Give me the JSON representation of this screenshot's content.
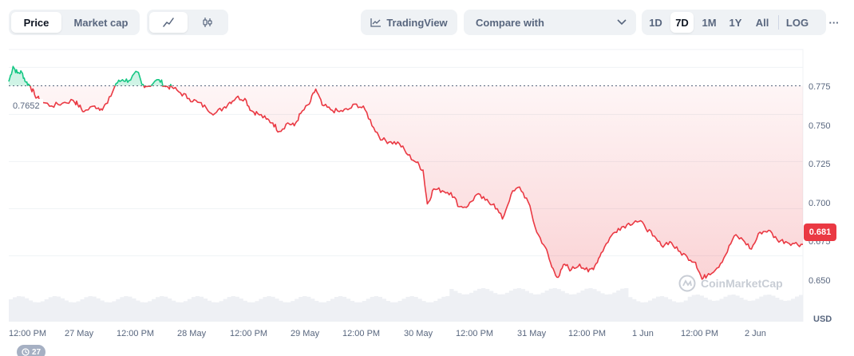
{
  "view_tabs": {
    "price": "Price",
    "market_cap": "Market cap"
  },
  "chart_type_buttons": [
    {
      "icon": "line-chart-icon"
    },
    {
      "icon": "candlestick-icon"
    }
  ],
  "tradingview_label": "TradingView",
  "compare": {
    "label": "Compare with"
  },
  "ranges": [
    "1D",
    "7D",
    "1M",
    "1Y",
    "All"
  ],
  "selected_range": "7D",
  "log_label": "LOG",
  "more_label": "···",
  "reference_price": "0.7652",
  "current_price": "0.681",
  "currency": "USD",
  "watermark": "CoinMarketCap",
  "history_count": "27",
  "colors": {
    "up": "#16c784",
    "down": "#ea3943",
    "accent": "#3861fb"
  },
  "chart_data": {
    "type": "line",
    "title": "",
    "xlabel": "",
    "ylabel": "USD",
    "ylim": [
      0.64,
      0.7845
    ],
    "y_ticks": [
      "0.775",
      "0.750",
      "0.725",
      "0.700",
      "0.675",
      "0.650"
    ],
    "x_ticks": [
      "12:00 PM",
      "27 May",
      "12:00 PM",
      "28 May",
      "12:00 PM",
      "29 May",
      "12:00 PM",
      "30 May",
      "12:00 PM",
      "31 May",
      "12:00 PM",
      "1 Jun",
      "12:00 PM",
      "2 Jun"
    ],
    "reference_line": 0.7652,
    "grid": true,
    "series": [
      {
        "points": [
          [
            0,
            0.7675
          ],
          [
            0.2,
            0.7755
          ],
          [
            0.4,
            0.772
          ],
          [
            0.6,
            0.7725
          ],
          [
            0.8,
            0.7672
          ],
          [
            1.0,
            0.7652
          ],
          [
            1.2,
            0.7605
          ],
          [
            1.5,
            0.757
          ],
          [
            2.0,
            0.7545
          ],
          [
            2.5,
            0.756
          ],
          [
            3.0,
            0.7575
          ],
          [
            3.2,
            0.7555
          ],
          [
            3.5,
            0.7515
          ],
          [
            4.0,
            0.7545
          ],
          [
            4.3,
            0.753
          ],
          [
            4.6,
            0.756
          ],
          [
            5.0,
            0.7665
          ],
          [
            5.3,
            0.7685
          ],
          [
            5.6,
            0.768
          ],
          [
            6.0,
            0.7725
          ],
          [
            6.2,
            0.766
          ],
          [
            6.5,
            0.765
          ],
          [
            7.0,
            0.7685
          ],
          [
            7.3,
            0.7648
          ],
          [
            7.6,
            0.7645
          ],
          [
            8.0,
            0.7615
          ],
          [
            8.4,
            0.7585
          ],
          [
            8.8,
            0.7565
          ],
          [
            9.2,
            0.7535
          ],
          [
            9.6,
            0.7505
          ],
          [
            10.0,
            0.7535
          ],
          [
            10.3,
            0.7565
          ],
          [
            10.6,
            0.759
          ],
          [
            11.0,
            0.7585
          ],
          [
            11.3,
            0.752
          ],
          [
            11.6,
            0.7505
          ],
          [
            12.0,
            0.7475
          ],
          [
            12.3,
            0.7455
          ],
          [
            12.6,
            0.741
          ],
          [
            13.0,
            0.7455
          ],
          [
            13.3,
            0.744
          ],
          [
            13.6,
            0.7505
          ],
          [
            14.0,
            0.7555
          ],
          [
            14.3,
            0.7635
          ],
          [
            14.6,
            0.755
          ],
          [
            15.0,
            0.7525
          ],
          [
            15.4,
            0.7515
          ],
          [
            15.8,
            0.7525
          ],
          [
            16.2,
            0.7555
          ],
          [
            16.6,
            0.7525
          ],
          [
            17.0,
            0.743
          ],
          [
            17.4,
            0.7365
          ],
          [
            17.8,
            0.7355
          ],
          [
            18.2,
            0.7345
          ],
          [
            18.6,
            0.7285
          ],
          [
            19.0,
            0.7245
          ],
          [
            19.3,
            0.7205
          ],
          [
            19.5,
            0.7025
          ],
          [
            19.8,
            0.7105
          ],
          [
            20.2,
            0.7095
          ],
          [
            20.6,
            0.7085
          ],
          [
            21.0,
            0.701
          ],
          [
            21.4,
            0.7015
          ],
          [
            21.8,
            0.7075
          ],
          [
            22.2,
            0.7045
          ],
          [
            22.6,
            0.7025
          ],
          [
            23.0,
            0.6945
          ],
          [
            23.4,
            0.7075
          ],
          [
            23.8,
            0.7115
          ],
          [
            24.2,
            0.7035
          ],
          [
            24.6,
            0.6875
          ],
          [
            25.0,
            0.6795
          ],
          [
            25.3,
            0.669
          ],
          [
            25.6,
            0.6635
          ],
          [
            25.9,
            0.6705
          ],
          [
            26.2,
            0.6675
          ],
          [
            26.6,
            0.6705
          ],
          [
            27.0,
            0.6665
          ],
          [
            27.3,
            0.6695
          ],
          [
            27.6,
            0.6765
          ],
          [
            28.0,
            0.6845
          ],
          [
            28.4,
            0.6895
          ],
          [
            28.8,
            0.6915
          ],
          [
            29.2,
            0.6935
          ],
          [
            29.6,
            0.6915
          ],
          [
            30.0,
            0.6855
          ],
          [
            30.4,
            0.6805
          ],
          [
            30.8,
            0.6825
          ],
          [
            31.2,
            0.6775
          ],
          [
            31.6,
            0.6745
          ],
          [
            32.0,
            0.6715
          ],
          [
            32.3,
            0.6625
          ],
          [
            32.6,
            0.6655
          ],
          [
            33.0,
            0.6685
          ],
          [
            33.4,
            0.6755
          ],
          [
            33.8,
            0.6855
          ],
          [
            34.2,
            0.6835
          ],
          [
            34.6,
            0.6785
          ],
          [
            35.0,
            0.6875
          ],
          [
            35.4,
            0.6885
          ],
          [
            35.8,
            0.6835
          ],
          [
            36.2,
            0.6825
          ],
          [
            36.6,
            0.6815
          ],
          [
            37.0,
            0.681
          ]
        ]
      }
    ],
    "volume_baseline": true
  }
}
